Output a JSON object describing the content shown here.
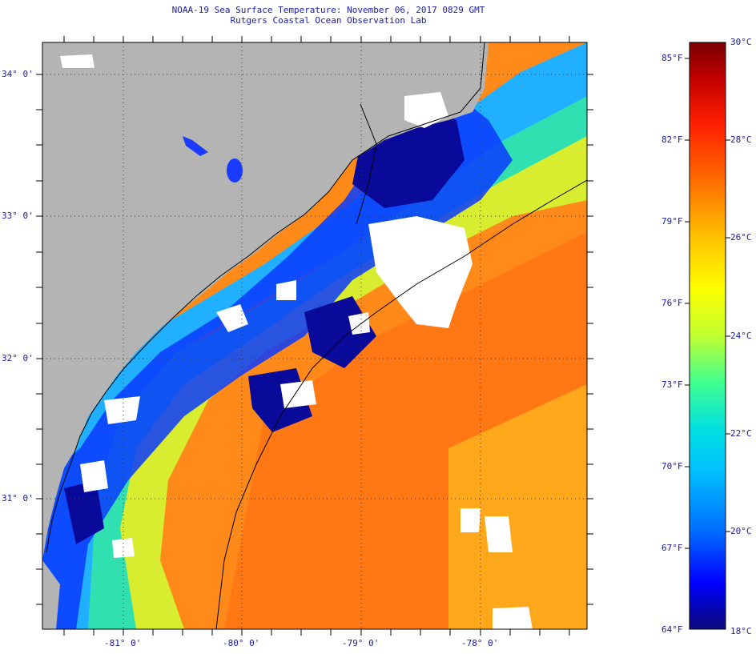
{
  "title": {
    "line1": "NOAA-19 Sea Surface Temperature:  November 06, 2017 0829 GMT",
    "line2": "Rutgers Coastal Ocean Observation Lab"
  },
  "map": {
    "lat_labels": [
      "34° 0'",
      "33° 0'",
      "32° 0'",
      "31° 0'"
    ],
    "lon_labels": [
      "-81° 0'",
      "-80° 0'",
      "-79° 0'",
      "-78° 0'"
    ],
    "land_color": "#b4b4b4",
    "cloud_color": "#ffffff",
    "coastline_color": "#000000"
  },
  "colorbar": {
    "fahrenheit_labels": [
      "85°F",
      "82°F",
      "79°F",
      "76°F",
      "73°F",
      "70°F",
      "67°F",
      "64°F"
    ],
    "celsius_labels": [
      "30°C",
      "28°C",
      "26°C",
      "24°C",
      "22°C",
      "20°C",
      "18°C"
    ],
    "range_c": [
      18,
      30
    ],
    "stops": [
      "#0a0a7a",
      "#0000ff",
      "#0070ff",
      "#00c0ff",
      "#00e0e0",
      "#40ff90",
      "#c0ff30",
      "#ffff00",
      "#ffc000",
      "#ff7000",
      "#ff2000",
      "#c00000",
      "#7a0000"
    ]
  }
}
